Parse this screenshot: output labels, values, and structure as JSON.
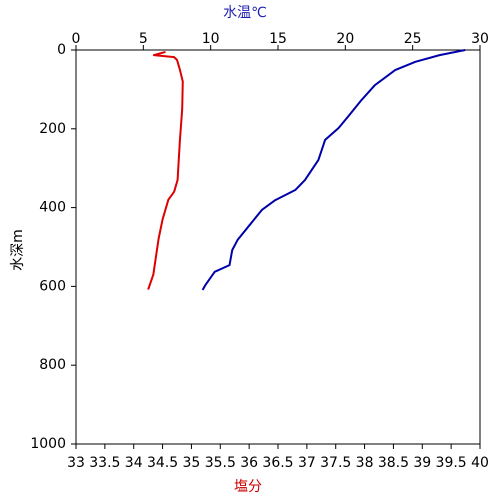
{
  "chart_data": {
    "type": "line",
    "title": "水温℃",
    "xlabel": "塩分",
    "ylabel": "水深m",
    "xlim": [
      33,
      40
    ],
    "xticks": [
      33,
      33.5,
      34,
      34.5,
      35,
      35.5,
      36,
      36.5,
      37,
      37.5,
      38,
      38.5,
      39,
      39.5,
      40
    ],
    "x2lim": [
      0,
      30
    ],
    "x2ticks": [
      0,
      5,
      10,
      15,
      20,
      25,
      30
    ],
    "ylim": [
      0,
      1000
    ],
    "yticks": [
      0,
      200,
      400,
      600,
      800,
      1000
    ],
    "y_inverted": true,
    "title_color": "#1f1fb4",
    "xlabel_color": "#cc0000",
    "series": [
      {
        "name": "水温",
        "color": "#0000aa",
        "axis": "x2",
        "values": [
          28.9,
          27.0,
          25.2,
          23.7,
          22.2,
          21.2,
          20.3,
          19.5,
          18.5,
          18.0,
          17.0,
          16.3,
          14.8,
          13.8,
          12.9,
          12.0,
          11.6,
          11.4,
          10.3,
          9.6,
          9.4
        ],
        "depth": [
          0,
          13,
          30,
          51,
          89,
          127,
          165,
          198,
          228,
          279,
          330,
          355,
          381,
          406,
          444,
          482,
          508,
          546,
          563,
          597,
          609
        ]
      },
      {
        "name": "塩分",
        "color": "#dd0000",
        "axis": "x",
        "values": [
          34.55,
          34.35,
          34.7,
          34.75,
          34.8,
          34.85,
          34.84,
          34.8,
          34.76,
          34.7,
          34.6,
          34.5,
          34.43,
          34.38,
          34.34,
          34.25
        ],
        "depth": [
          5,
          13,
          18,
          25,
          50,
          80,
          150,
          230,
          330,
          360,
          380,
          430,
          480,
          530,
          570,
          608
        ]
      }
    ]
  }
}
